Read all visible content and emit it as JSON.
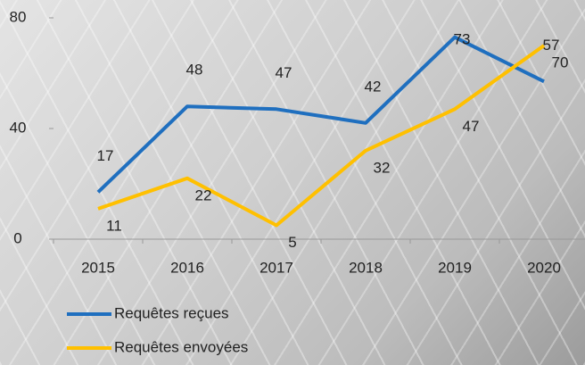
{
  "chart_data": {
    "type": "line",
    "categories": [
      "2015",
      "2016",
      "2017",
      "2018",
      "2019",
      "2020"
    ],
    "series": [
      {
        "name": "Requêtes reçues",
        "color": "#1f6fbf",
        "values": [
          17,
          48,
          47,
          42,
          73,
          57
        ]
      },
      {
        "name": "Requêtes envoyées",
        "color": "#ffc000",
        "values": [
          11,
          22,
          5,
          32,
          47,
          70
        ]
      }
    ],
    "ylim": [
      0,
      80
    ],
    "yticks": [
      0,
      40,
      80
    ]
  }
}
